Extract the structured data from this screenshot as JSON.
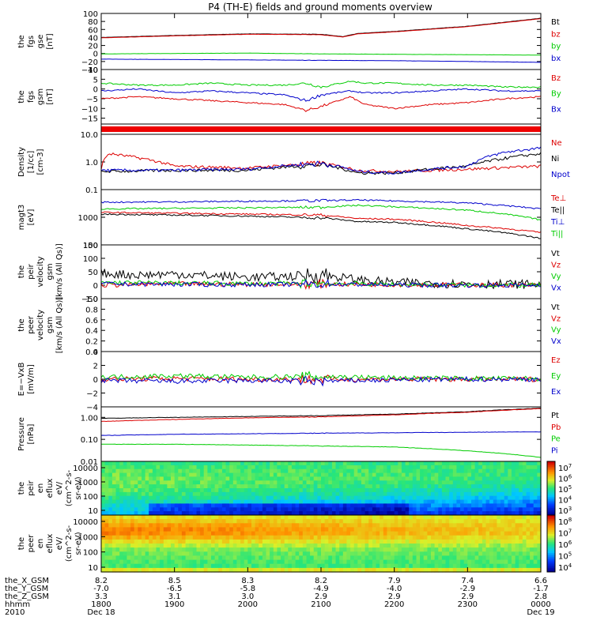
{
  "chart_data": {
    "type": "line",
    "title": "P4 (TH-E) fields and ground moments overview",
    "xaxis": {
      "ticks": [
        {
          "the_X_GSM": "8.2",
          "the_Y_GSM": "-7.0",
          "the_Z_GSM": "3.3",
          "hhmm": "1800",
          "date": "Dec 18"
        },
        {
          "the_X_GSM": "8.5",
          "the_Y_GSM": "-6.5",
          "the_Z_GSM": "3.1",
          "hhmm": "1900",
          "date": ""
        },
        {
          "the_X_GSM": "8.3",
          "the_Y_GSM": "-5.8",
          "the_Z_GSM": "3.0",
          "hhmm": "2000",
          "date": ""
        },
        {
          "the_X_GSM": "8.2",
          "the_Y_GSM": "-4.9",
          "the_Z_GSM": "2.9",
          "hhmm": "2100",
          "date": ""
        },
        {
          "the_X_GSM": "7.9",
          "the_Y_GSM": "-4.0",
          "the_Z_GSM": "2.9",
          "hhmm": "2200",
          "date": ""
        },
        {
          "the_X_GSM": "7.4",
          "the_Y_GSM": "-2.9",
          "the_Z_GSM": "2.9",
          "hhmm": "2300",
          "date": ""
        },
        {
          "the_X_GSM": "6.6",
          "the_Y_GSM": "-1.7",
          "the_Z_GSM": "2.8",
          "hhmm": "0000",
          "date": "Dec 19"
        }
      ],
      "row_labels": [
        "the_X_GSM",
        "the_Y_GSM",
        "the_Z_GSM",
        "hhmm",
        "2010"
      ]
    },
    "panels": [
      {
        "id": "fgs",
        "kind": "line",
        "ylabel": [
          "the",
          "fgs",
          "gse",
          "[nT]"
        ],
        "yrange": [
          -40,
          100
        ],
        "ytick_labels": [
          "100",
          "80",
          "60",
          "40",
          "20",
          "0",
          "−20",
          "−40"
        ],
        "series": [
          {
            "name": "Bt",
            "color": "#000000",
            "x": [
              0,
              1,
              2,
              3,
              3.3,
              3.5,
              4,
              5,
              6
            ],
            "y": [
              40,
              45,
              49,
              48,
              42,
              50,
              55,
              68,
              88
            ]
          },
          {
            "name": "bz",
            "color": "#dd0000",
            "x": [
              0,
              1,
              2,
              3,
              3.3,
              3.5,
              4,
              5,
              6
            ],
            "y": [
              39,
              44,
              48,
              47,
              41,
              49,
              54,
              67,
              87
            ]
          },
          {
            "name": "by",
            "color": "#00cc00",
            "x": [
              0,
              1,
              2,
              3,
              4,
              5,
              6
            ],
            "y": [
              -1,
              0,
              1,
              -1,
              -2,
              -3,
              -4
            ]
          },
          {
            "name": "bx",
            "color": "#0000cc",
            "x": [
              0,
              1,
              2,
              3,
              4,
              5,
              6
            ],
            "y": [
              -14,
              -15,
              -16,
              -17,
              -18,
              -20,
              -22
            ]
          }
        ]
      },
      {
        "id": "fgs_dsl",
        "kind": "line",
        "ylabel": [
          "the",
          "fgs",
          "gsm",
          "[nT]"
        ],
        "yrange": [
          -18,
          10
        ],
        "ytick_labels": [
          "10",
          "5",
          "0",
          "−5",
          "−10",
          "−15"
        ],
        "series": [
          {
            "name": "Bz",
            "color": "#dd0000",
            "x": [
              0,
              0.5,
              1,
              1.5,
              2,
              2.5,
              2.8,
              3,
              3.4,
              3.6,
              4,
              4.5,
              5,
              5.5,
              6
            ],
            "y": [
              -5,
              -4,
              -5,
              -6,
              -7,
              -8,
              -11,
              -9,
              -4,
              -8,
              -10,
              -8,
              -7,
              -5,
              -4
            ]
          },
          {
            "name": "By",
            "color": "#00cc00",
            "x": [
              0,
              0.5,
              1,
              1.5,
              2,
              2.5,
              2.8,
              3,
              3.4,
              3.6,
              4,
              4.5,
              5,
              5.5,
              6
            ],
            "y": [
              3,
              2,
              2,
              3,
              2,
              2,
              3,
              1,
              4,
              3,
              3,
              2,
              2,
              1,
              1
            ]
          },
          {
            "name": "Bx",
            "color": "#0000cc",
            "x": [
              0,
              0.5,
              1,
              1.5,
              2,
              2.5,
              2.8,
              3,
              3.4,
              3.6,
              4,
              4.5,
              5,
              5.5,
              6
            ],
            "y": [
              -1,
              0,
              -2,
              -1,
              -2,
              -3,
              -6,
              -3,
              -1,
              -2,
              -2,
              -1,
              0,
              -1,
              -1
            ]
          }
        ]
      },
      {
        "id": "quality_bar",
        "kind": "bar",
        "color": "#ee0000"
      },
      {
        "id": "density",
        "kind": "line",
        "log": true,
        "ylabel": [
          "Density",
          "[1/cc]",
          "[cm-3]"
        ],
        "yrange": [
          0.1,
          10
        ],
        "ytick_labels": [
          "10.0",
          "1.0",
          "0.1"
        ],
        "series": [
          {
            "name": "Ne",
            "color": "#dd0000",
            "x": [
              0,
              0.1,
              1,
              2,
              3,
              3.5,
              4,
              5,
              6
            ],
            "y": [
              0.6,
              2.0,
              0.7,
              0.6,
              0.9,
              0.5,
              0.45,
              0.55,
              0.7
            ]
          },
          {
            "name": "Ni",
            "color": "#000000",
            "x": [
              0,
              1,
              2,
              3,
              3.5,
              4,
              5,
              6
            ],
            "y": [
              0.45,
              0.5,
              0.5,
              0.8,
              0.4,
              0.4,
              0.7,
              2.0
            ]
          },
          {
            "name": "Npot",
            "color": "#0000cc",
            "x": [
              0,
              1,
              2,
              3,
              3.5,
              4,
              5,
              5.5,
              6
            ],
            "y": [
              0.5,
              0.5,
              0.55,
              0.9,
              0.45,
              0.4,
              0.7,
              2.2,
              3.2
            ]
          }
        ]
      },
      {
        "id": "temperature",
        "kind": "line",
        "log": true,
        "ylabel": [
          "magt3",
          "[eV]"
        ],
        "yrange": [
          100,
          10000
        ],
        "ytick_labels": [
          "1000",
          "100"
        ],
        "series": [
          {
            "name": "Te⊥",
            "color": "#dd0000",
            "x": [
              0,
              1,
              2,
              3,
              3.5,
              4,
              5,
              6
            ],
            "y": [
              1500,
              1400,
              1300,
              1200,
              900,
              850,
              500,
              280
            ]
          },
          {
            "name": "Te||",
            "color": "#000000",
            "x": [
              0,
              1,
              2,
              3,
              3.5,
              4,
              5,
              6
            ],
            "y": [
              1300,
              1200,
              1100,
              950,
              700,
              650,
              380,
              170
            ]
          },
          {
            "name": "Ti⊥",
            "color": "#0000cc",
            "x": [
              0,
              1,
              2,
              3,
              3.5,
              4,
              5,
              6
            ],
            "y": [
              3500,
              3600,
              3800,
              4000,
              4200,
              3900,
              3300,
              2000
            ]
          },
          {
            "name": "Ti||",
            "color": "#00cc00",
            "x": [
              0,
              1,
              2,
              3,
              3.5,
              4,
              5,
              6
            ],
            "y": [
              2000,
              2100,
              2200,
              2300,
              2700,
              2400,
              1800,
              800
            ]
          }
        ]
      },
      {
        "id": "peir_velocity",
        "kind": "line",
        "ylabel": [
          "the",
          "peir",
          "velocity",
          "gsm",
          "[km/s (All Qs)]"
        ],
        "yrange": [
          -50,
          150
        ],
        "ytick_labels": [
          "150",
          "100",
          "50",
          "0",
          "−50"
        ],
        "series": [
          {
            "name": "Vt",
            "color": "#000000",
            "x": [
              0,
              0.5,
              1,
              1.5,
              2,
              2.5,
              3,
              3.5,
              4,
              5,
              6
            ],
            "y": [
              45,
              38,
              42,
              35,
              30,
              32,
              40,
              20,
              10,
              5,
              3
            ]
          },
          {
            "name": "Vz",
            "color": "#dd0000",
            "x": [
              0,
              1,
              2,
              3,
              4,
              5,
              6
            ],
            "y": [
              0,
              5,
              3,
              4,
              2,
              1,
              0
            ]
          },
          {
            "name": "Vy",
            "color": "#00cc00",
            "x": [
              0,
              1,
              2,
              3,
              4,
              5,
              6
            ],
            "y": [
              10,
              8,
              6,
              7,
              3,
              1,
              0
            ]
          },
          {
            "name": "Vx",
            "color": "#0000cc",
            "x": [
              0,
              1,
              2,
              3,
              4,
              5,
              6
            ],
            "y": [
              5,
              3,
              2,
              4,
              1,
              0,
              0
            ]
          }
        ]
      },
      {
        "id": "peer_velocity",
        "kind": "line",
        "ylabel": [
          "the",
          "peer",
          "velocity",
          "gsm",
          "[km/s (All Qs)]"
        ],
        "yrange": [
          0,
          1.0
        ],
        "ytick_labels": [
          "1.0",
          "0.8",
          "0.6",
          "0.4",
          "0.2",
          "0.0"
        ],
        "series": [
          {
            "name": "Vt",
            "color": "#000000",
            "x": [],
            "y": []
          },
          {
            "name": "Vz",
            "color": "#dd0000",
            "x": [],
            "y": []
          },
          {
            "name": "Vy",
            "color": "#00cc00",
            "x": [],
            "y": []
          },
          {
            "name": "Vx",
            "color": "#0000cc",
            "x": [],
            "y": []
          }
        ]
      },
      {
        "id": "efield",
        "kind": "line",
        "ylabel": [
          "E=−VxB",
          "[mV/m]"
        ],
        "yrange": [
          -4,
          4
        ],
        "ytick_labels": [
          "4",
          "2",
          "0",
          "−2",
          "−4"
        ],
        "series": [
          {
            "name": "Ez",
            "color": "#dd0000",
            "x": [
              0,
              1,
              2,
              3,
              4,
              5,
              6
            ],
            "y": [
              0,
              0.1,
              0,
              0,
              0,
              0,
              0
            ]
          },
          {
            "name": "Ey",
            "color": "#00cc00",
            "x": [
              0,
              1,
              2,
              3,
              4,
              5,
              6
            ],
            "y": [
              0.3,
              0.5,
              0.3,
              0.4,
              0.2,
              0.1,
              0.1
            ]
          },
          {
            "name": "Ex",
            "color": "#0000cc",
            "x": [
              0,
              1,
              2,
              3,
              4,
              5,
              6
            ],
            "y": [
              -0.2,
              -0.3,
              -0.2,
              -0.3,
              -0.1,
              0,
              0
            ]
          }
        ]
      },
      {
        "id": "pressure",
        "kind": "line",
        "log": true,
        "ylabel": [
          "Pressure",
          "[nPa]"
        ],
        "yrange": [
          0.01,
          3
        ],
        "ytick_labels": [
          "1.00",
          "0.10",
          "0.01"
        ],
        "series": [
          {
            "name": "Pt",
            "color": "#000000",
            "x": [
              0,
              1,
              2,
              3,
              4,
              5,
              6
            ],
            "y": [
              0.9,
              1.0,
              1.1,
              1.2,
              1.4,
              1.8,
              2.6
            ]
          },
          {
            "name": "Pb",
            "color": "#dd0000",
            "x": [
              0,
              1,
              2,
              3,
              4,
              5,
              6
            ],
            "y": [
              0.65,
              0.8,
              0.95,
              1.05,
              1.3,
              1.7,
              2.5
            ]
          },
          {
            "name": "Pe",
            "color": "#00cc00",
            "x": [
              0,
              1,
              2,
              3,
              4,
              5,
              6
            ],
            "y": [
              0.06,
              0.06,
              0.055,
              0.05,
              0.045,
              0.03,
              0.015
            ]
          },
          {
            "name": "Pi",
            "color": "#0000cc",
            "x": [
              0,
              1,
              2,
              3,
              4,
              5,
              6
            ],
            "y": [
              0.15,
              0.17,
              0.18,
              0.19,
              0.2,
              0.21,
              0.22
            ]
          }
        ]
      },
      {
        "id": "peir_spectrogram",
        "kind": "spectrogram",
        "ylabel": [
          "the",
          "peir",
          "en",
          "eflux",
          "eV/",
          "(cm^2-s-",
          "sr-eV)"
        ],
        "ytick_labels": [
          "10000",
          "1000",
          "100",
          "10"
        ],
        "colorbar_labels": [
          "10^7",
          "10^6",
          "10^5",
          "10^4",
          "10^3"
        ]
      },
      {
        "id": "peer_spectrogram",
        "kind": "spectrogram",
        "ylabel": [
          "the",
          "peer",
          "en",
          "eflux",
          "eV/",
          "(cm^2-s-",
          "sr-eV)"
        ],
        "ytick_labels": [
          "10000",
          "1000",
          "100",
          "10"
        ],
        "colorbar_labels": [
          "10^8",
          "10^7",
          "10^6",
          "10^5",
          "10^4"
        ]
      }
    ],
    "x_range_hours": [
      0,
      6
    ],
    "year": "2010"
  }
}
